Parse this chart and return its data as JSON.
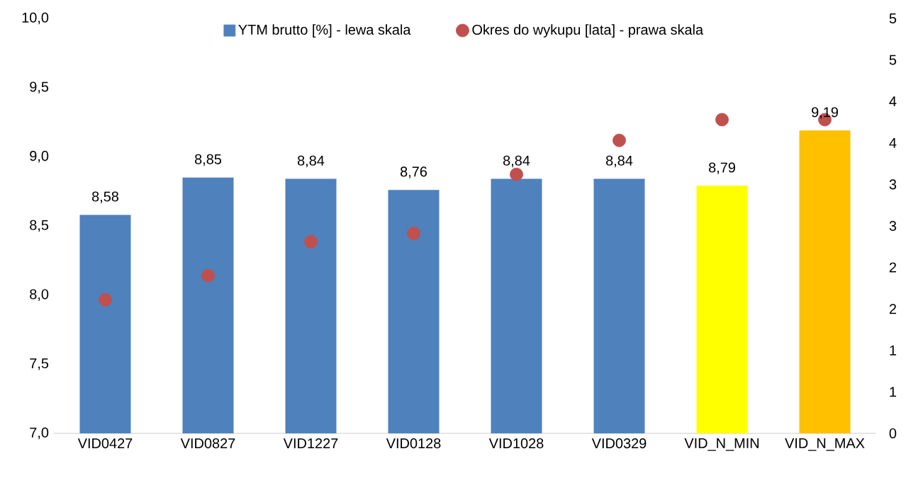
{
  "chart_data": {
    "type": "bar",
    "categories": [
      "VID0427",
      "VID0827",
      "VID1227",
      "VID0128",
      "VID1028",
      "VID0329",
      "VID_N_MIN",
      "VID_N_MAX"
    ],
    "series": [
      {
        "name": "YTM brutto [%] - lewa skala",
        "color": "#4f81bd",
        "colors": [
          "#4f81bd",
          "#4f81bd",
          "#4f81bd",
          "#4f81bd",
          "#4f81bd",
          "#4f81bd",
          "#ffff00",
          "#ffc000"
        ],
        "values": [
          8.58,
          8.85,
          8.84,
          8.76,
          8.84,
          8.84,
          8.79,
          9.19
        ],
        "value_labels": [
          "8,58",
          "8,85",
          "8,84",
          "8,76",
          "8,84",
          "8,84",
          "8,79",
          "9,19"
        ]
      },
      {
        "name": "Okres do wykupu [lata] - prawa skala",
        "type": "scatter",
        "axis": "y2",
        "color": "#c0504d",
        "marker": "circle",
        "values": [
          1.61,
          1.9,
          2.31,
          2.41,
          3.12,
          3.53,
          3.78,
          3.78
        ]
      }
    ],
    "ylim": [
      7,
      10
    ],
    "yticks": [
      {
        "value": 7,
        "label": "7,0"
      },
      {
        "value": 7.5,
        "label": "7,5"
      },
      {
        "value": 8,
        "label": "8,0"
      },
      {
        "value": 8.5,
        "label": "8,5"
      },
      {
        "value": 9,
        "label": "9,0"
      },
      {
        "value": 9.5,
        "label": "9,5"
      },
      {
        "value": 10,
        "label": "10,0"
      }
    ],
    "y2lim": [
      0,
      5
    ],
    "y2ticks": [
      0,
      {
        "value": 0.5,
        "label": "1"
      },
      1,
      {
        "value": 1.5,
        "label": "2"
      },
      2,
      {
        "value": 2.5,
        "label": "3"
      },
      3,
      {
        "value": 3.5,
        "label": "4"
      },
      4,
      {
        "value": 4.5,
        "label": "5"
      },
      5
    ],
    "grid": false,
    "legend": "top"
  }
}
